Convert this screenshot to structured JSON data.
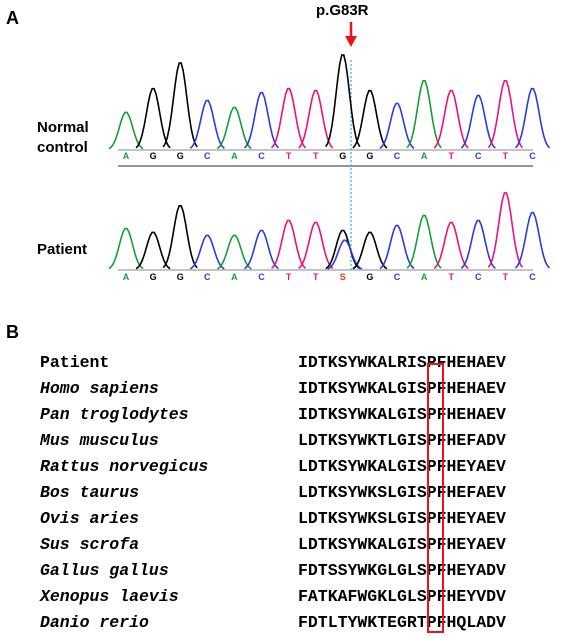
{
  "panelA": {
    "label": "A",
    "mutation": "p.G83R",
    "normal_label_line1": "Normal",
    "normal_label_line2": "control",
    "patient_label": "Patient",
    "normal_bases": [
      "A",
      "G",
      "G",
      "C",
      "A",
      "C",
      "T",
      "T",
      "G",
      "G",
      "C",
      "A",
      "T",
      "C",
      "T",
      "C"
    ],
    "patient_bases": [
      "A",
      "G",
      "G",
      "C",
      "A",
      "C",
      "T",
      "T",
      "S",
      "G",
      "C",
      "A",
      "T",
      "C",
      "T",
      "C"
    ]
  },
  "panelB": {
    "label": "B",
    "rows": [
      {
        "species": "Patient",
        "italic": false,
        "seq": "IDTKSYWKALRISPFHEHAEV"
      },
      {
        "species": "Homo sapiens",
        "italic": true,
        "seq": "IDTKSYWKALGISPFHEHAEV"
      },
      {
        "species": "Pan troglodytes",
        "italic": true,
        "seq": "IDTKSYWKALGISPFHEHAEV"
      },
      {
        "species": "Mus musculus",
        "italic": true,
        "seq": "LDTKSYWKTLGISPFHEFADV"
      },
      {
        "species": "Rattus norvegicus",
        "italic": true,
        "seq": "LDTKSYWKALGISPFHEYAEV"
      },
      {
        "species": "Bos taurus",
        "italic": true,
        "seq": "LDTKSYWKSLGISPFHEFAEV"
      },
      {
        "species": "Ovis aries",
        "italic": true,
        "seq": "LDTKSYWKSLGISPFHEYAEV"
      },
      {
        "species": "Sus scrofa",
        "italic": true,
        "seq": "LDTKSYWKALGISPFHEYAEV"
      },
      {
        "species": "Gallus gallus",
        "italic": true,
        "seq": "FDTSSYWKGLGLSPFHEYADV"
      },
      {
        "species": "Xenopus laevis",
        "italic": true,
        "seq": "FATKAFWGKLGLSPFHEYVDV"
      },
      {
        "species": "Danio rerio",
        "italic": true,
        "seq": "FDTLTYWKTEGRTPFHQLADV"
      }
    ]
  },
  "colors": {
    "A": "#1a9a3c",
    "C": "#2f3bd8",
    "G": "#000000",
    "T": "#e8147e",
    "S": "#e23a2a",
    "arrow": "#e8141b",
    "dashed": "#5fb6e8"
  }
}
